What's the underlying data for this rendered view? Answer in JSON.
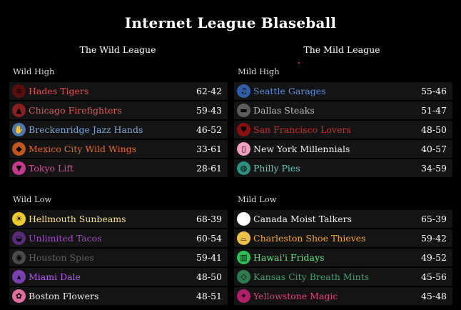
{
  "title": "Internet League Blaseball",
  "leagues": {
    "wild": {
      "name": "The Wild League",
      "high": {
        "label": "Wild High",
        "teams": [
          {
            "name": "Hades Tigers",
            "record": "62-42",
            "color": "#e05050",
            "icon_bg": "#5a0f0f",
            "icon": "tiger-icon",
            "glyph": "≋"
          },
          {
            "name": "Chicago Firefighters",
            "record": "59-43",
            "color": "#e05a5a",
            "icon_bg": "#8a1f1f",
            "icon": "fire-icon",
            "glyph": "▲"
          },
          {
            "name": "Breckenridge Jazz Hands",
            "record": "46-52",
            "color": "#7fa6d6",
            "icon_bg": "#4a78b0",
            "icon": "jazz-hands-icon",
            "glyph": "✋"
          },
          {
            "name": "Mexico City Wild Wings",
            "record": "33-61",
            "color": "#e86a2a",
            "icon_bg": "#c2561d",
            "icon": "wing-icon",
            "glyph": "◆"
          },
          {
            "name": "Tokyo Lift",
            "record": "28-61",
            "color": "#e24aa0",
            "icon_bg": "#c93a8e",
            "icon": "lift-icon",
            "glyph": "▼"
          }
        ]
      },
      "low": {
        "label": "Wild Low",
        "teams": [
          {
            "name": "Hellmouth Sunbeams",
            "record": "68-39",
            "color": "#f5e27a",
            "icon_bg": "#f0cc2a",
            "icon": "sun-icon",
            "glyph": "☀"
          },
          {
            "name": "Unlimited Tacos",
            "record": "60-54",
            "color": "#9b4fc0",
            "icon_bg": "#5a2a7a",
            "icon": "taco-icon",
            "glyph": "◒"
          },
          {
            "name": "Houston Spies",
            "record": "59-41",
            "color": "#5f5f5f",
            "icon_bg": "#4b4b4b",
            "icon": "spy-icon",
            "glyph": "◉"
          },
          {
            "name": "Miami Dale",
            "record": "48-50",
            "color": "#b25cf0",
            "icon_bg": "#7a3fb0",
            "icon": "flamingo-icon",
            "glyph": "▴"
          },
          {
            "name": "Boston Flowers",
            "record": "48-51",
            "color": "#f0e8e8",
            "icon_bg": "#e06ea0",
            "icon": "flower-icon",
            "glyph": "✿"
          }
        ]
      }
    },
    "mild": {
      "name": "The Mild League",
      "high": {
        "label": "Mild High",
        "teams": [
          {
            "name": "Seattle Garages",
            "record": "55-46",
            "color": "#5b8fe0",
            "icon_bg": "#2f5fa8",
            "icon": "guitar-icon",
            "glyph": "♫"
          },
          {
            "name": "Dallas Steaks",
            "record": "51-47",
            "color": "#bfbfbf",
            "icon_bg": "#5c5c5c",
            "icon": "steak-icon",
            "glyph": "▬"
          },
          {
            "name": "San Francisco Lovers",
            "record": "48-50",
            "color": "#d42a2a",
            "icon_bg": "#8a1010",
            "icon": "lips-icon",
            "glyph": "♥"
          },
          {
            "name": "New York Millennials",
            "record": "40-57",
            "color": "#f0f0f0",
            "icon_bg": "#f0a0c0",
            "icon": "phone-icon",
            "glyph": "▯"
          },
          {
            "name": "Philly Pies",
            "record": "34-59",
            "color": "#5fd0c0",
            "icon_bg": "#2e9080",
            "icon": "pie-icon",
            "glyph": "◍"
          }
        ]
      },
      "low": {
        "label": "Mild Low",
        "teams": [
          {
            "name": "Canada Moist Talkers",
            "record": "65-39",
            "color": "#f0f0f0",
            "icon_bg": "#ffffff",
            "icon": "speech-icon",
            "glyph": ""
          },
          {
            "name": "Charleston Shoe Thieves",
            "record": "59-42",
            "color": "#f5a623",
            "icon_bg": "#f0c14a",
            "icon": "shoe-icon",
            "glyph": "⌓"
          },
          {
            "name": "Hawai'i Fridays",
            "record": "49-52",
            "color": "#4ef07a",
            "icon_bg": "#2fc05a",
            "icon": "drink-icon",
            "glyph": "▥"
          },
          {
            "name": "Kansas City Breath Mints",
            "record": "45-56",
            "color": "#3fa06a",
            "icon_bg": "#2e7a4e",
            "icon": "mint-icon",
            "glyph": "◇"
          },
          {
            "name": "Yellowstone Magic",
            "record": "45-48",
            "color": "#e04080",
            "icon_bg": "#b0206a",
            "icon": "sparkle-icon",
            "glyph": "✦"
          }
        ]
      }
    }
  }
}
